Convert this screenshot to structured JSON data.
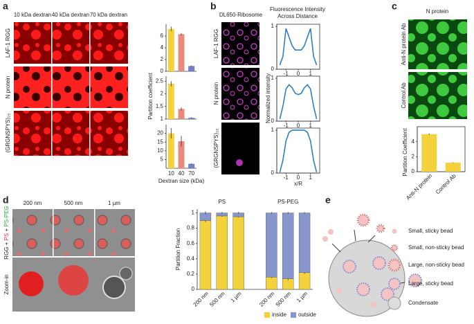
{
  "panel_labels": [
    "a",
    "b",
    "c",
    "d",
    "e"
  ],
  "panel_a": {
    "columns": [
      "10 kDa dextran",
      "40 kDa dextran",
      "70 kDa dextran"
    ],
    "rows": [
      "LAF-1 RGG",
      "N protein",
      "(GRGNSPYS)₂₅"
    ]
  },
  "panel_b": {
    "title": "DL650-Ribosome",
    "rows": [
      "LAF-1 RGG",
      "N protein",
      "(GRGNSPYS)₂₅"
    ]
  },
  "panel_c": {
    "title": "N protein",
    "rows": [
      "Anti-N protein Ab",
      "Control Ab"
    ]
  },
  "panel_d": {
    "columns": [
      "200 nm",
      "500 nm",
      "1 µm"
    ],
    "row_label": [
      "RGG +",
      "PS",
      "+",
      "PS-PEG"
    ],
    "zoom": "Zoom-in"
  },
  "panel_e": {
    "legend": [
      "Small, sticky bead",
      "Small, non-sticky bead",
      "Large, non-sticky bead",
      "Large, sticky bead",
      "Condensate"
    ]
  },
  "chart_data": [
    {
      "type": "bar_multi",
      "ylabel": "Partition coefficient",
      "xlabel": "Dextran size (kDa)",
      "categories": [
        "10",
        "40",
        "70"
      ],
      "colors": [
        "#f3d23c",
        "#e98b7c",
        "#7080c2"
      ],
      "subplots": [
        {
          "values": [
            7.2,
            6.3,
            0.9
          ],
          "errors": [
            0.4,
            0.2,
            0.1
          ],
          "ylim": [
            0,
            8
          ],
          "yticks": [
            0,
            2,
            4,
            6
          ]
        },
        {
          "values": [
            2.4,
            1.4,
            1.05
          ],
          "errors": [
            0.1,
            0.06,
            0.02
          ],
          "ylim": [
            1,
            2.7
          ],
          "yticks": [
            1,
            1.5,
            2,
            2.5
          ]
        },
        {
          "values": [
            20,
            15.5,
            2.5
          ],
          "errors": [
            3,
            3,
            0.3
          ],
          "ylim": [
            0,
            25
          ],
          "yticks": [
            5,
            10,
            15,
            20
          ]
        }
      ]
    },
    {
      "type": "line",
      "title": [
        "Fluorescence Intensity",
        "Across Distance"
      ],
      "xlabel": "x/R",
      "ylabel": "Normalized intensity",
      "xlim": [
        -1.75,
        1.75
      ],
      "xticks": [
        -1,
        0,
        1
      ],
      "ylim": [
        0,
        1.05
      ],
      "yticks": [
        0,
        1
      ],
      "color": "#2f7fc1",
      "series": [
        {
          "x": [
            -1.5,
            -1.25,
            -1,
            -0.75,
            -0.5,
            -0.25,
            0,
            0.25,
            0.5,
            0.75,
            1,
            1.25,
            1.5
          ],
          "values": [
            0.1,
            0.3,
            0.95,
            0.75,
            0.55,
            0.45,
            0.45,
            0.45,
            0.55,
            0.75,
            0.95,
            0.3,
            0.1
          ]
        },
        {
          "x": [
            -1.5,
            -1.25,
            -1,
            -0.75,
            -0.5,
            -0.25,
            0,
            0.25,
            0.5,
            0.75,
            1,
            1.25,
            1.5
          ],
          "values": [
            0.05,
            0.35,
            0.75,
            0.85,
            0.78,
            0.65,
            0.62,
            0.65,
            0.78,
            0.85,
            0.75,
            0.35,
            0.05
          ]
        },
        {
          "x": [
            -1.5,
            -1.25,
            -1,
            -0.75,
            -0.5,
            -0.25,
            0,
            0.25,
            0.5,
            0.75,
            1,
            1.25,
            1.5
          ],
          "values": [
            0.02,
            0.3,
            0.75,
            0.95,
            1,
            1,
            1,
            1,
            1,
            0.95,
            0.75,
            0.3,
            0.02
          ]
        }
      ]
    },
    {
      "type": "bar",
      "ylabel": "Partition Coefficient",
      "categories": [
        "Anti-N protein",
        "Control Ab"
      ],
      "values": [
        5,
        1.2
      ],
      "errors": [
        0.1,
        0.05
      ],
      "color": "#f3d23c",
      "ylim": [
        0,
        6
      ],
      "yticks": [
        0,
        2,
        4
      ]
    },
    {
      "type": "stacked_bar",
      "ylabel": "Partition Fraction",
      "categories": [
        "200 nm",
        "500 nm",
        "1 µm",
        "200 nm",
        "500 nm",
        "1 µm"
      ],
      "groups": [
        {
          "name": "PS",
          "color": "#e0393b"
        },
        {
          "name": "PS-PEG",
          "color": "#27a844"
        }
      ],
      "series": [
        {
          "name": "inside",
          "color": "#f3d23c",
          "values": [
            0.9,
            0.96,
            0.95,
            0.16,
            0.14,
            0.22
          ],
          "errors": [
            0.02,
            0.01,
            0.01,
            0.01,
            0.02,
            0.02
          ]
        },
        {
          "name": "outside",
          "color": "#8796cc",
          "values": [
            0.1,
            0.04,
            0.05,
            0.84,
            0.86,
            0.78
          ],
          "errors": [
            0.02,
            0.01,
            0.01,
            0.01,
            0.01,
            0.01
          ]
        }
      ],
      "ylim": [
        0,
        1.05
      ],
      "yticks": [
        0,
        0.2,
        0.4,
        0.6,
        0.8,
        1
      ]
    }
  ]
}
